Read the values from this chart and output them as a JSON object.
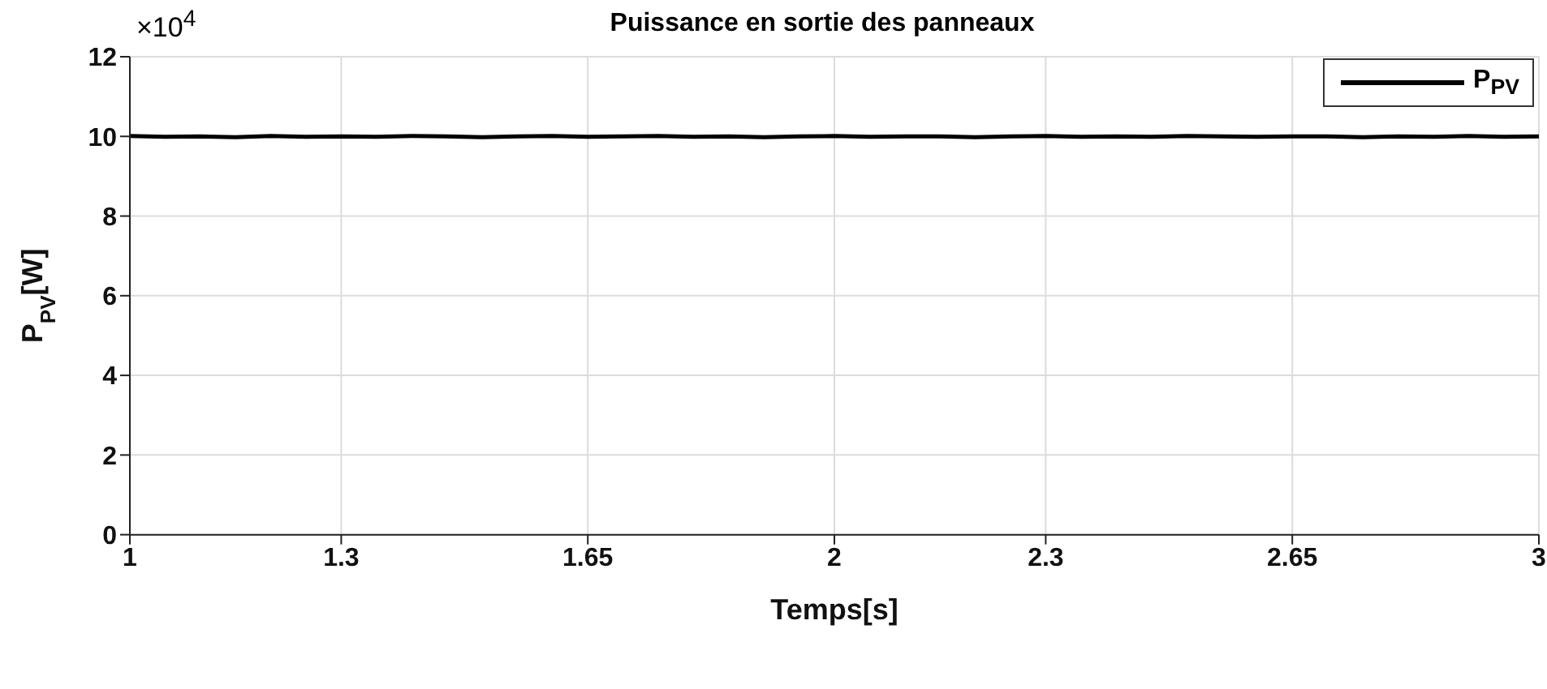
{
  "chart_data": {
    "type": "line",
    "title": "Puissance en sortie des panneaux",
    "xlabel": "Temps[s]",
    "ylabel": "P$_{PV}$[W]",
    "x": [
      1,
      1.05,
      1.1,
      1.15,
      1.2,
      1.25,
      1.3,
      1.35,
      1.4,
      1.45,
      1.5,
      1.55,
      1.6,
      1.65,
      1.7,
      1.75,
      1.8,
      1.85,
      1.9,
      1.95,
      2,
      2.05,
      2.1,
      2.15,
      2.2,
      2.25,
      2.3,
      2.35,
      2.4,
      2.45,
      2.5,
      2.55,
      2.6,
      2.65,
      2.7,
      2.75,
      2.8,
      2.85,
      2.9,
      2.95,
      3
    ],
    "series": [
      {
        "name": "P$_{PV}$",
        "color": "#000000",
        "values": [
          10.01,
          9.99,
          10,
          9.98,
          10.01,
          9.99,
          10,
          9.99,
          10.01,
          10,
          9.98,
          10,
          10.01,
          9.99,
          10,
          10.01,
          9.99,
          10,
          9.98,
          10,
          10.01,
          9.99,
          10,
          10,
          9.98,
          10,
          10.01,
          9.99,
          10,
          9.99,
          10.01,
          10,
          9.99,
          10,
          10,
          9.98,
          10,
          9.99,
          10.01,
          9.99,
          10
        ]
      }
    ],
    "xlim": [
      1,
      3
    ],
    "xticks": [
      1,
      1.3,
      1.65,
      2,
      2.3,
      2.65,
      3
    ],
    "ylim": [
      0,
      12
    ],
    "yticks": [
      0,
      2,
      4,
      6,
      8,
      10,
      12
    ],
    "annotations": [
      "×10$^{4}$"
    ],
    "grid": true,
    "legend": "top right",
    "marker": "none",
    "line_style": "solid"
  }
}
